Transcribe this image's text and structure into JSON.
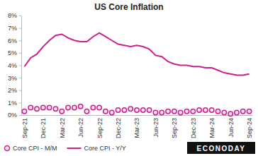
{
  "chart_data": {
    "type": "line",
    "title": "US Core Inflation",
    "categories": [
      "Sep-21",
      null,
      null,
      "Dec-21",
      null,
      null,
      "Mar-22",
      null,
      null,
      "Jun-22",
      null,
      null,
      "Sep-22",
      null,
      null,
      "Dec-22",
      null,
      null,
      "Mar-23",
      null,
      null,
      "Jun-23",
      null,
      null,
      "Sep-23",
      null,
      null,
      "Dec-23",
      null,
      null,
      "Mar-24",
      null,
      null,
      "Jun-24",
      null,
      null,
      "Sep-24"
    ],
    "series": [
      {
        "name": "Core CPI - M/M",
        "type": "scatter",
        "marker": "circle",
        "color": "#cc1f8f",
        "values": [
          0.3,
          0.6,
          0.5,
          0.6,
          0.6,
          0.5,
          0.3,
          0.6,
          0.6,
          0.7,
          0.3,
          0.6,
          0.6,
          0.3,
          0.2,
          0.4,
          0.4,
          0.5,
          0.4,
          0.4,
          0.4,
          0.2,
          0.2,
          0.3,
          0.3,
          0.2,
          0.3,
          0.3,
          0.4,
          0.4,
          0.4,
          0.3,
          0.2,
          0.1,
          0.2,
          0.3,
          0.3
        ]
      },
      {
        "name": "Core CPI - Y/Y",
        "type": "line",
        "line_style": "solid",
        "color": "#cc1f8f",
        "values": [
          3.9,
          4.6,
          4.9,
          5.5,
          6.0,
          6.4,
          6.5,
          6.2,
          6.0,
          5.9,
          5.9,
          6.3,
          6.6,
          6.3,
          6.0,
          5.7,
          5.6,
          5.5,
          5.6,
          5.5,
          5.3,
          4.8,
          4.7,
          4.3,
          4.1,
          4.0,
          4.0,
          3.9,
          3.9,
          3.8,
          3.8,
          3.6,
          3.4,
          3.3,
          3.2,
          3.2,
          3.3
        ]
      }
    ],
    "ylim": [
      0,
      8
    ],
    "yticks": [
      {
        "value": 0,
        "label": "0%"
      },
      {
        "value": 1,
        "label": "1%"
      },
      {
        "value": 2,
        "label": "2%"
      },
      {
        "value": 3,
        "label": "3%"
      },
      {
        "value": 4,
        "label": "4%"
      },
      {
        "value": 5,
        "label": "5%"
      },
      {
        "value": 6,
        "label": "6%"
      },
      {
        "value": 7,
        "label": "7%"
      },
      {
        "value": 8,
        "label": "8%"
      }
    ],
    "grid": false,
    "legend": "bottom",
    "annotations": [
      "ECONODAY"
    ]
  }
}
